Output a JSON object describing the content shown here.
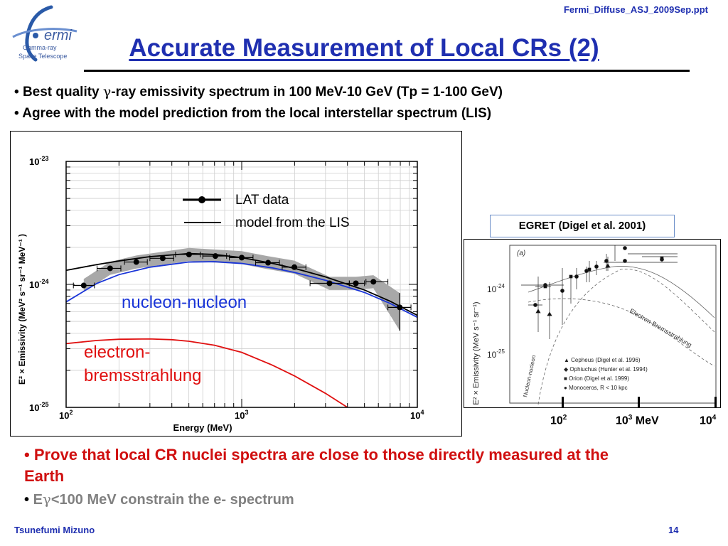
{
  "header": {
    "file_ref": "Fermi_Diffuse_ASJ_2009Sep.ppt",
    "logo_mark": "ermi",
    "logo_line1": "Gamma-ray",
    "logo_line2": "Space Telescope",
    "title": "Accurate Measurement of Local CRs (2)"
  },
  "bullets": {
    "b1_prefix": "Best quality ",
    "b1_symbol": "γ",
    "b1_rest": "-ray emissivity spectrum in 100 MeV-10 GeV (Tp = 1-100 GeV)",
    "b2": "Agree with the model prediction from the local interstellar spectrum (LIS)",
    "marker": "•"
  },
  "chart_data": [
    {
      "type": "line",
      "xlabel": "Energy (MeV)",
      "ylabel": "E² × Emissivity (MeV² s⁻¹ sr⁻¹ MeV⁻¹ )",
      "xscale": "log",
      "yscale": "log",
      "xlim": [
        100,
        10000
      ],
      "ylim": [
        1e-25,
        1e-23
      ],
      "x_ticks": [
        {
          "base": "10",
          "exp": "2",
          "value": 100
        },
        {
          "base": "10",
          "exp": "3",
          "value": 1000
        },
        {
          "base": "10",
          "exp": "4",
          "value": 10000
        }
      ],
      "y_ticks": [
        {
          "base": "10",
          "exp": "-25",
          "value": 1e-25
        },
        {
          "base": "10",
          "exp": "-24",
          "value": 1e-24
        },
        {
          "base": "10",
          "exp": "-23",
          "value": 1e-23
        }
      ],
      "grid": true,
      "legend_position": "top-right",
      "legend": [
        "LAT data",
        "model from the LIS"
      ],
      "annotations": [
        "nucleon-nucleon",
        "electron-",
        "bremsstrahlung"
      ],
      "colors": {
        "data": "#000000",
        "model": "#000000",
        "nn": "#1a35d8",
        "brems": "#e01010",
        "band": "#a8a8a8"
      },
      "series": [
        {
          "name": "LAT data",
          "points": [
            {
              "x": 126,
              "y": 9.8e-25,
              "xlo": 110,
              "xhi": 145
            },
            {
              "x": 178,
              "y": 1.35e-24,
              "xlo": 150,
              "xhi": 205
            },
            {
              "x": 251,
              "y": 1.52e-24,
              "xlo": 215,
              "xhi": 290
            },
            {
              "x": 355,
              "y": 1.63e-24,
              "xlo": 300,
              "xhi": 410
            },
            {
              "x": 501,
              "y": 1.75e-24,
              "xlo": 420,
              "xhi": 580
            },
            {
              "x": 708,
              "y": 1.7e-24,
              "xlo": 600,
              "xhi": 820
            },
            {
              "x": 1000,
              "y": 1.65e-24,
              "xlo": 850,
              "xhi": 1160
            },
            {
              "x": 1413,
              "y": 1.5e-24,
              "xlo": 1200,
              "xhi": 1640
            },
            {
              "x": 1995,
              "y": 1.38e-24,
              "xlo": 1700,
              "xhi": 2320
            },
            {
              "x": 3162,
              "y": 1.02e-24,
              "xlo": 2450,
              "xhi": 4100
            },
            {
              "x": 4467,
              "y": 1.02e-24,
              "xlo": 4100,
              "xhi": 5000
            },
            {
              "x": 5623,
              "y": 1.05e-24,
              "xlo": 5100,
              "xhi": 6800
            },
            {
              "x": 7943,
              "y": 6.5e-25,
              "xlo": 6800,
              "xhi": 9200,
              "ylo": 4.2e-25,
              "yhi": 8.5e-25
            }
          ]
        },
        {
          "name": "model from the LIS",
          "x": [
            100,
            150,
            200,
            300,
            500,
            700,
            1000,
            1500,
            2000,
            3000,
            5000,
            7000,
            10000
          ],
          "y": [
            1.3e-24,
            1.45e-24,
            1.55e-24,
            1.68e-24,
            1.78e-24,
            1.75e-24,
            1.65e-24,
            1.48e-24,
            1.35e-24,
            1.15e-24,
            9e-25,
            7.3e-25,
            5.6e-25
          ]
        },
        {
          "name": "nucleon-nucleon",
          "x": [
            100,
            150,
            200,
            300,
            500,
            700,
            1000,
            1500,
            2000,
            3000,
            5000,
            7000,
            10000
          ],
          "y": [
            7.2e-25,
            1.02e-24,
            1.2e-24,
            1.38e-24,
            1.52e-24,
            1.53e-24,
            1.48e-24,
            1.36e-24,
            1.25e-24,
            1.08e-24,
            8.6e-25,
            7e-25,
            5.4e-25
          ]
        },
        {
          "name": "electron-bremsstrahlung",
          "x": [
            100,
            150,
            200,
            300,
            400,
            500,
            700,
            1000,
            1500,
            2000,
            3000,
            4000
          ],
          "y": [
            3.3e-25,
            3.5e-25,
            3.58e-25,
            3.6e-25,
            3.55e-25,
            3.45e-25,
            3.2e-25,
            2.8e-25,
            2.2e-25,
            1.8e-25,
            1.3e-25,
            1e-25
          ]
        }
      ]
    },
    {
      "type": "scatter",
      "panel_label": "(a)",
      "ylabel": "E² × Emissivity (MeV s⁻¹ sr⁻¹)",
      "y_ticks": [
        {
          "base": "10",
          "exp": "-24"
        },
        {
          "base": "10",
          "exp": "-25"
        }
      ],
      "curve_labels": [
        "Electron-Bremsstrahlung",
        "Nucleon-nucleon"
      ],
      "legend_position": "bottom-right",
      "legend": [
        "Cepheus (Digel et al. 1996)",
        "Ophiuchus (Hunter et al. 1994)",
        "Orion (Digel et al. 1999)",
        "Monoceros, R < 10 kpc"
      ],
      "legend_markers": [
        "▲",
        "◆",
        "■",
        "●"
      ],
      "source_label": "EGRET (Digel et al. 2001)",
      "x_ticks": [
        {
          "base": "10",
          "exp": "2",
          "suffix": ""
        },
        {
          "base": "10",
          "exp": "3",
          "suffix": " MeV"
        },
        {
          "base": "10",
          "exp": "4",
          "suffix": ""
        }
      ]
    }
  ],
  "conclusions": {
    "marker": "•",
    "red_text": "Prove that local CR nuclei spectra are close to those directly measured at the Earth",
    "gray_prefix": "E",
    "gray_symbol": "γ",
    "gray_rest": "<100 MeV constrain the e- spectrum"
  },
  "footer": {
    "author": "Tsunefumi Mizuno",
    "page": "14"
  }
}
